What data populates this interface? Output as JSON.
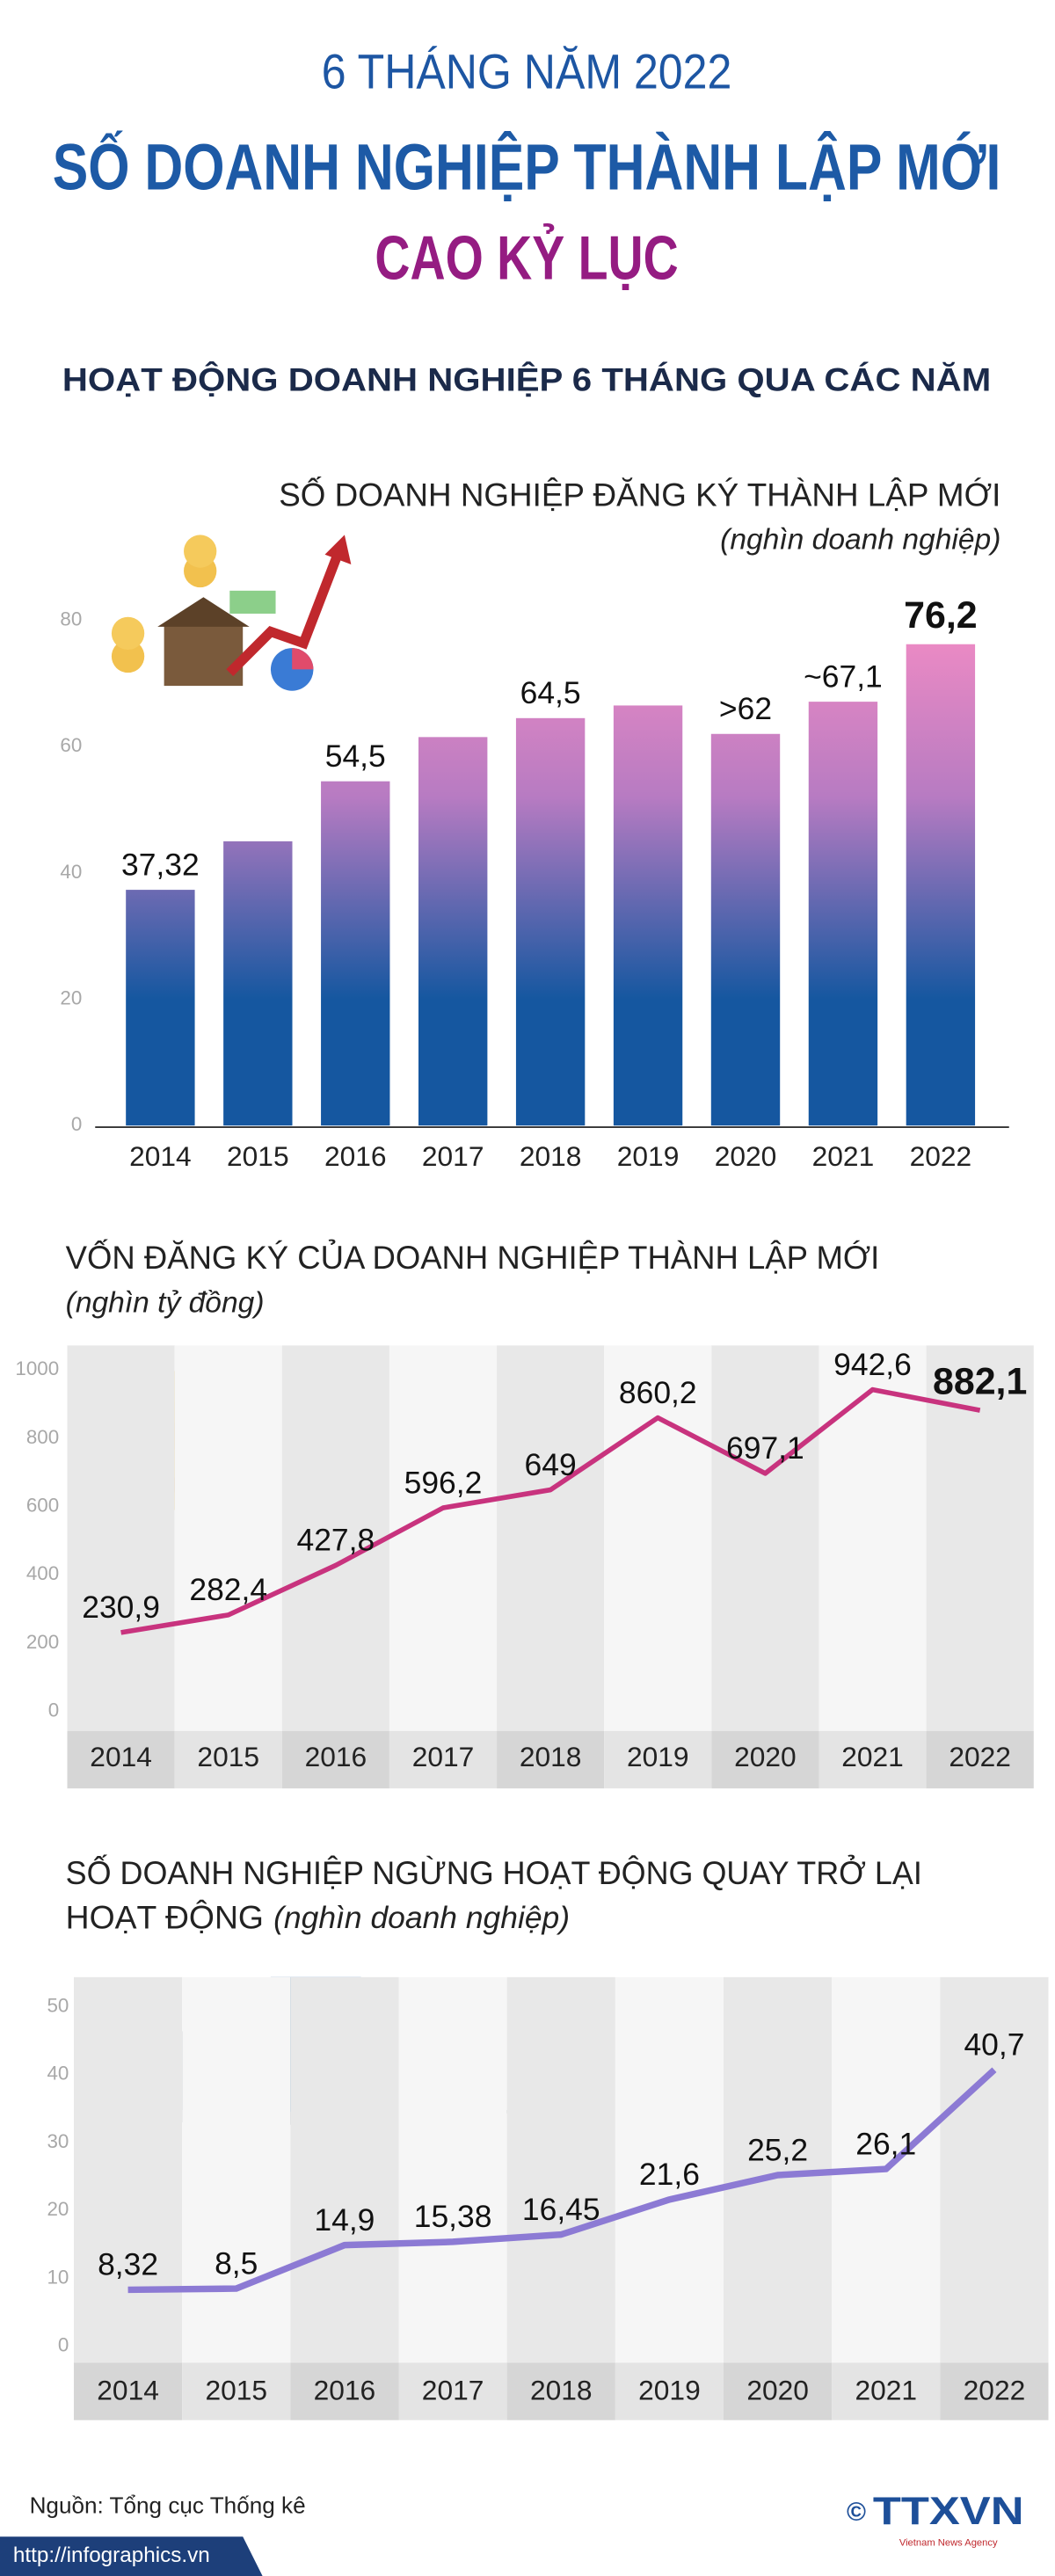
{
  "header": {
    "kicker": "6 THÁNG NĂM 2022",
    "title": "SỐ DOANH NGHIỆP THÀNH LẬP MỚI",
    "title2": "CAO KỶ LỤC",
    "section": "HOẠT ĐỘNG DOANH NGHIỆP 6 THÁNG QUA CÁC NĂM"
  },
  "chart_data": [
    {
      "type": "bar",
      "title": [
        "SỐ DOANH NGHIỆP ĐĂNG KÝ THÀNH LẬP MỚI"
      ],
      "subtitle": "(nghìn doanh nghiệp)",
      "categories": [
        "2014",
        "2015",
        "2016",
        "2017",
        "2018",
        "2019",
        "2020",
        "2021",
        "2022"
      ],
      "values": [
        37.32,
        45,
        54.5,
        61.5,
        64.5,
        66.5,
        62,
        67.1,
        76.2
      ],
      "value_labels": [
        "37,32",
        null,
        "54,5",
        null,
        "64,5",
        null,
        ">62",
        "~67,1",
        "76,2"
      ],
      "ylim": [
        0,
        80
      ],
      "yticks": [
        0,
        20,
        40,
        60,
        80
      ],
      "color": [
        "#1557a0",
        "#f28cc4"
      ]
    },
    {
      "type": "line",
      "title": [
        "VỐN ĐĂNG KÝ CỦA DOANH NGHIỆP THÀNH LẬP MỚI"
      ],
      "subtitle": "(nghìn tỷ đồng)",
      "categories": [
        "2014",
        "2015",
        "2016",
        "2017",
        "2018",
        "2019",
        "2020",
        "2021",
        "2022"
      ],
      "values": [
        230.9,
        282.4,
        427.8,
        596.2,
        649,
        860.2,
        697.1,
        942.6,
        882.1
      ],
      "value_labels": [
        "230,9",
        "282,4",
        "427,8",
        "596,2",
        "649",
        "860,2",
        "697,1",
        "942,6",
        "882,1"
      ],
      "ylim": [
        0,
        1000
      ],
      "yticks": [
        0,
        200,
        400,
        600,
        800,
        1000
      ],
      "color": "#c8337e"
    },
    {
      "type": "line",
      "title": [
        "SỐ DOANH NGHIỆP NGỪNG HOẠT ĐỘNG QUAY TRỞ LẠI",
        "HOẠT ĐỘNG"
      ],
      "subtitle": "(nghìn doanh nghiệp)",
      "categories": [
        "2014",
        "2015",
        "2016",
        "2017",
        "2018",
        "2019",
        "2020",
        "2021",
        "2022"
      ],
      "values": [
        8.32,
        8.5,
        14.9,
        15.38,
        16.45,
        21.6,
        25.2,
        26.1,
        40.7
      ],
      "value_labels": [
        "8,32",
        "8,5",
        "14,9",
        "15,38",
        "16,45",
        "21,6",
        "25,2",
        "26,1",
        "40,7"
      ],
      "ylim": [
        0,
        50
      ],
      "yticks": [
        0,
        10,
        20,
        30,
        40,
        50
      ],
      "color": "#8c7ad4"
    }
  ],
  "footer": {
    "source": "Nguồn: Tổng cục Thống kê",
    "url": "http://infographics.vn",
    "copyright": "©",
    "logo": "TTXVN",
    "logo_sub": "Vietnam News Agency"
  }
}
